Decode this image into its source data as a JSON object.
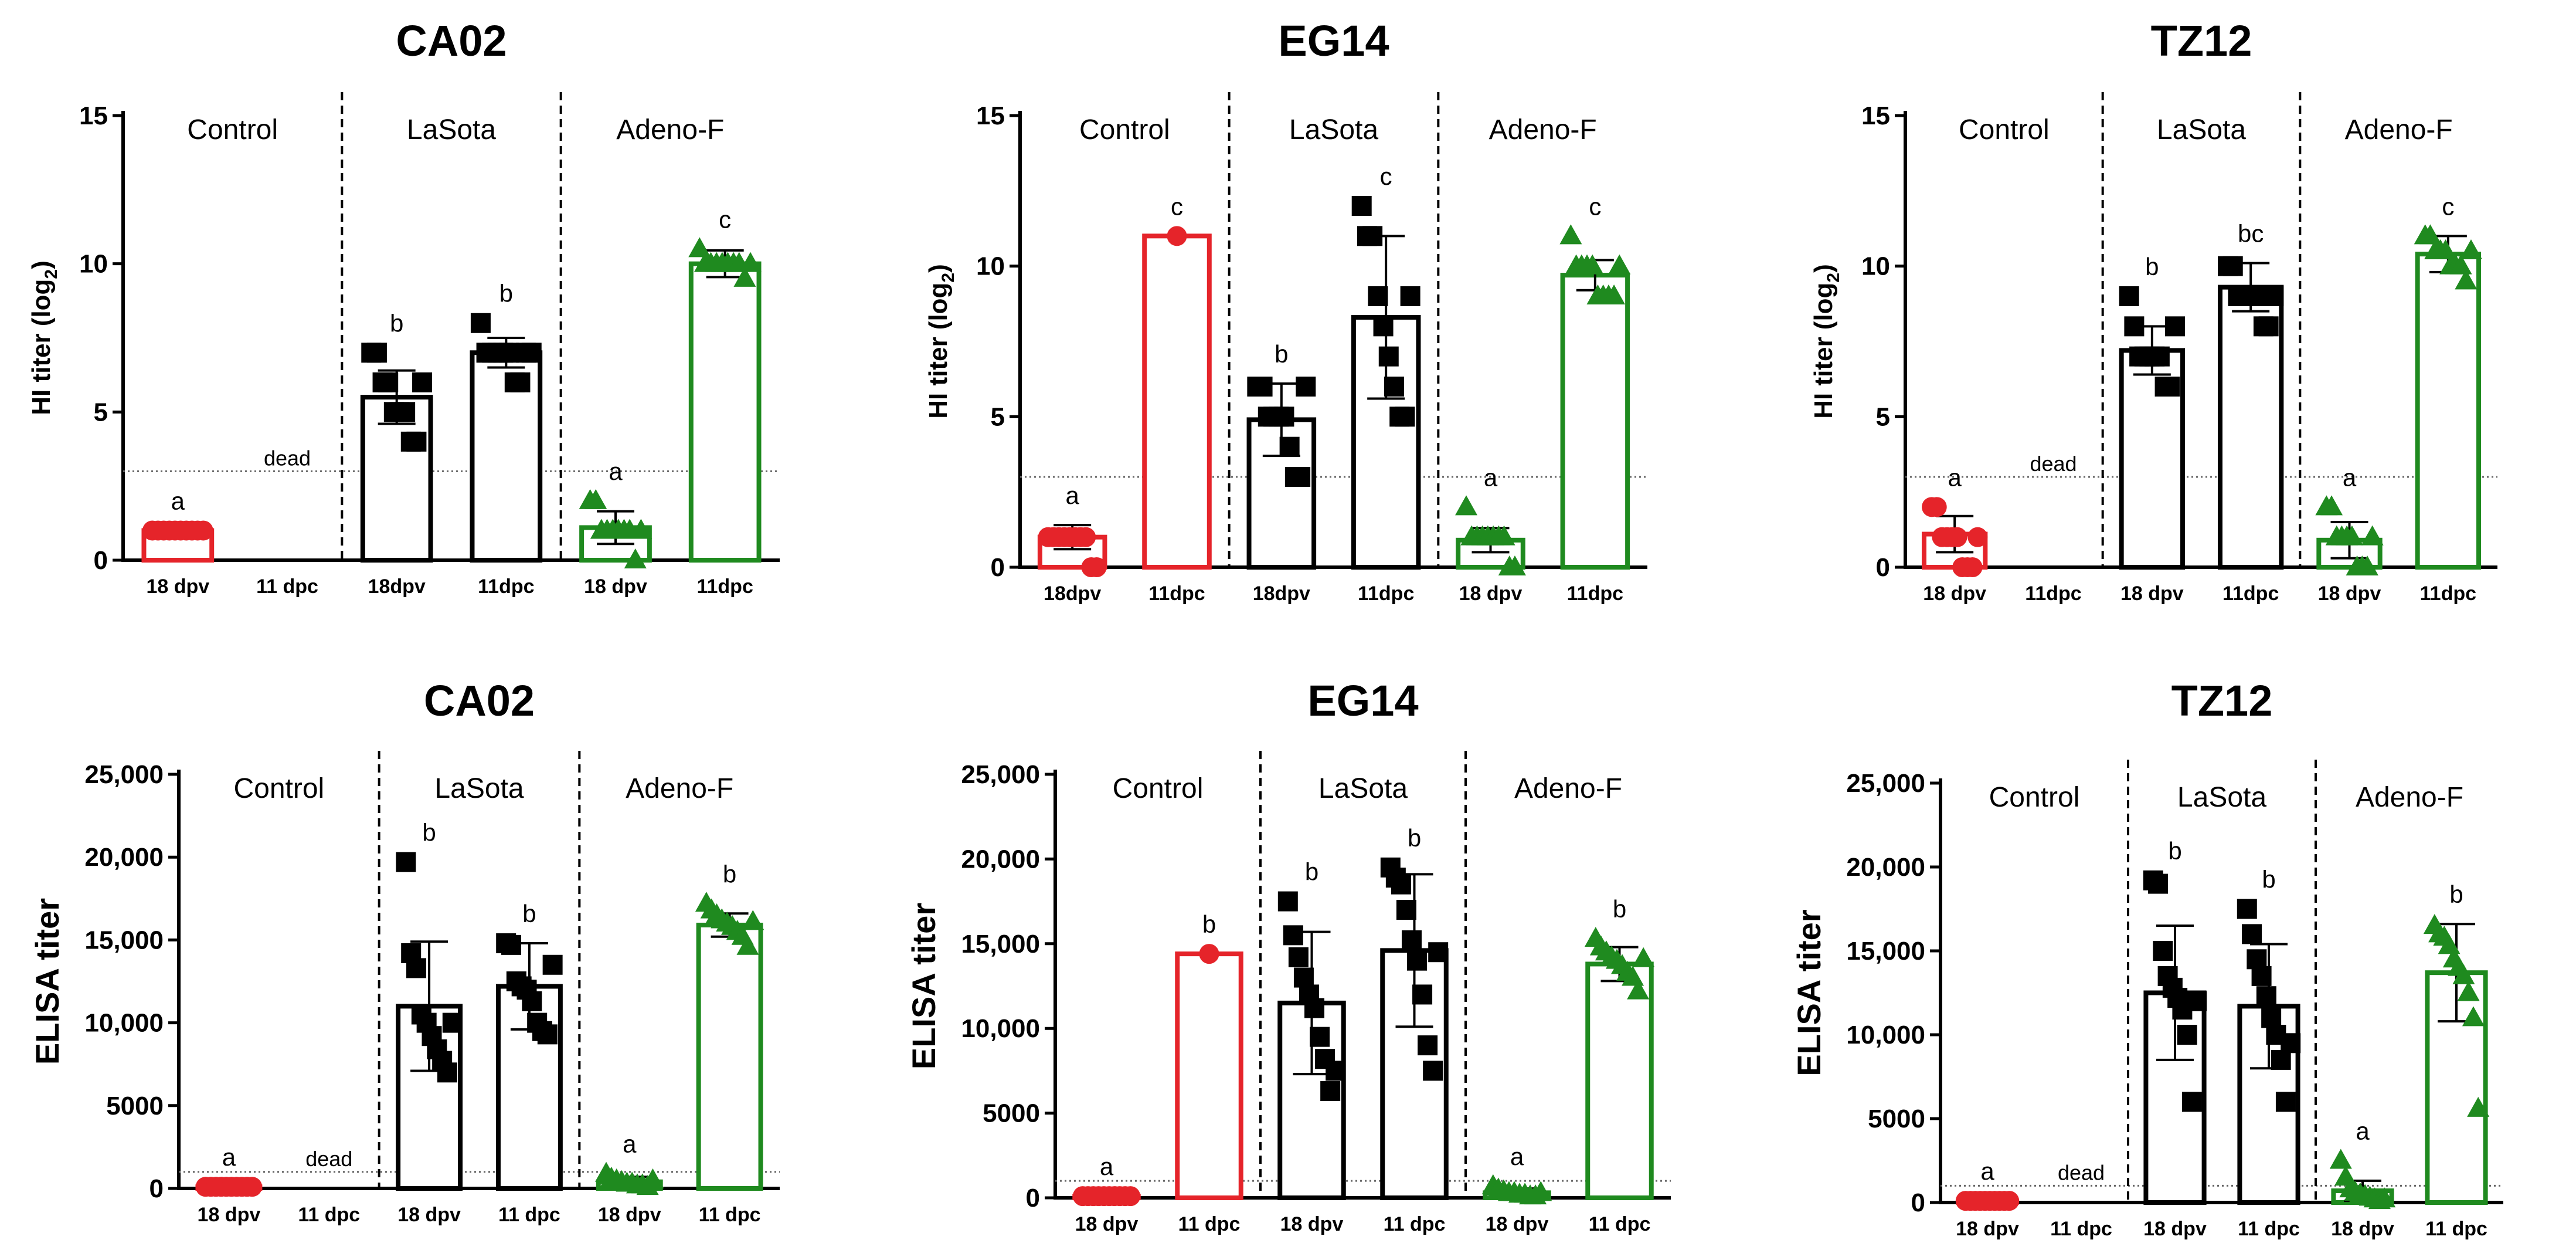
{
  "chart_data": [
    {
      "type": "bar",
      "title": "CA02",
      "ylabel": "HI titer (log",
      "ylabel_sub": "2",
      "ylabel_end": ")",
      "ylim": [
        0,
        15
      ],
      "yticks": [
        {
          "v": 0,
          "label": "0"
        },
        {
          "v": 5,
          "label": "5"
        },
        {
          "v": 10,
          "label": "10"
        },
        {
          "v": 15,
          "label": "15"
        }
      ],
      "threshold": 3,
      "groups": [
        {
          "name": "Control",
          "bars": [
            0,
            1
          ]
        },
        {
          "name": "LaSota",
          "bars": [
            2,
            3
          ]
        },
        {
          "name": "Adeno-F",
          "bars": [
            4,
            5
          ]
        }
      ],
      "bars": [
        {
          "label": "18 dpv",
          "mean": 1.0,
          "sd": 0,
          "color": "#e5242a",
          "marker": "circle",
          "letter": "a",
          "dead_text": "",
          "points": [
            1,
            1,
            1,
            1,
            1,
            1,
            1,
            1,
            1,
            1
          ]
        },
        {
          "label": "11 dpc",
          "mean": null,
          "sd": null,
          "color": "#e5242a",
          "marker": "circle",
          "letter": "",
          "dead_text": "dead",
          "points": []
        },
        {
          "label": "18dpv",
          "mean": 5.5,
          "sd": 0.9,
          "color": "#000000",
          "marker": "square",
          "letter": "b",
          "dead_text": "",
          "points": [
            7,
            7,
            6,
            6,
            5,
            5,
            5,
            4,
            4,
            6
          ]
        },
        {
          "label": "11dpc",
          "mean": 7.0,
          "sd": 0.5,
          "color": "#000000",
          "marker": "square",
          "letter": "b",
          "dead_text": "",
          "points": [
            8,
            7,
            7,
            7,
            7,
            7,
            6,
            6,
            7,
            7
          ]
        },
        {
          "label": "18 dpv",
          "mean": 1.1,
          "sd": 0.55,
          "color": "#1f8a1f",
          "marker": "triangle",
          "letter": "a",
          "dead_text": "",
          "points": [
            2,
            2,
            1,
            1,
            1,
            1,
            1,
            1,
            0,
            1
          ]
        },
        {
          "label": "11dpc",
          "mean": 10.0,
          "sd": 0.45,
          "color": "#1f8a1f",
          "marker": "triangle",
          "letter": "c",
          "dead_text": "",
          "points": [
            10.5,
            10,
            10,
            10,
            10,
            10,
            10,
            10,
            9.5,
            10
          ]
        }
      ]
    },
    {
      "type": "bar",
      "title": "EG14",
      "ylabel": "HI titer (log",
      "ylabel_sub": "2",
      "ylabel_end": ")",
      "ylim": [
        0,
        15
      ],
      "yticks": [
        {
          "v": 0,
          "label": "0"
        },
        {
          "v": 5,
          "label": "5"
        },
        {
          "v": 10,
          "label": "10"
        },
        {
          "v": 15,
          "label": "15"
        }
      ],
      "threshold": 3,
      "groups": [
        {
          "name": "Control",
          "bars": [
            0,
            1
          ]
        },
        {
          "name": "LaSota",
          "bars": [
            2,
            3
          ]
        },
        {
          "name": "Adeno-F",
          "bars": [
            4,
            5
          ]
        }
      ],
      "bars": [
        {
          "label": "18dpv",
          "mean": 1.0,
          "sd": 0.4,
          "color": "#e5242a",
          "marker": "circle",
          "letter": "a",
          "dead_text": "",
          "points": [
            1,
            1,
            1,
            1,
            1,
            1,
            1,
            1,
            0,
            0
          ]
        },
        {
          "label": "11dpc",
          "mean": 11.0,
          "sd": 0,
          "color": "#e5242a",
          "marker": "circle",
          "letter": "c",
          "dead_text": "",
          "points": [
            11
          ]
        },
        {
          "label": "18dpv",
          "mean": 4.9,
          "sd": 1.2,
          "color": "#000000",
          "marker": "square",
          "letter": "b",
          "dead_text": "",
          "points": [
            6,
            6,
            5,
            5,
            5,
            5,
            4,
            3,
            3,
            6
          ]
        },
        {
          "label": "11dpc",
          "mean": 8.3,
          "sd": 2.7,
          "color": "#000000",
          "marker": "square",
          "letter": "c",
          "dead_text": "",
          "points": [
            12,
            11,
            11,
            9,
            8,
            7,
            6,
            5,
            5,
            9
          ]
        },
        {
          "label": "18 dpv",
          "mean": 0.9,
          "sd": 0.4,
          "color": "#1f8a1f",
          "marker": "triangle",
          "letter": "a",
          "dead_text": "",
          "points": [
            2,
            1,
            1,
            1,
            1,
            1,
            1,
            1,
            0,
            0
          ]
        },
        {
          "label": "11dpc",
          "mean": 9.7,
          "sd": 0.5,
          "color": "#1f8a1f",
          "marker": "triangle",
          "letter": "c",
          "dead_text": "",
          "points": [
            11,
            10,
            10,
            10,
            10,
            9,
            9,
            9,
            9,
            10
          ]
        }
      ]
    },
    {
      "type": "bar",
      "title": "TZ12",
      "ylabel": "HI titer (log",
      "ylabel_sub": "2",
      "ylabel_end": ")",
      "ylim": [
        0,
        15
      ],
      "yticks": [
        {
          "v": 0,
          "label": "0"
        },
        {
          "v": 5,
          "label": "5"
        },
        {
          "v": 10,
          "label": "10"
        },
        {
          "v": 15,
          "label": "15"
        }
      ],
      "threshold": 3,
      "groups": [
        {
          "name": "Control",
          "bars": [
            0,
            1
          ]
        },
        {
          "name": "LaSota",
          "bars": [
            2,
            3
          ]
        },
        {
          "name": "Adeno-F",
          "bars": [
            4,
            5
          ]
        }
      ],
      "bars": [
        {
          "label": "18 dpv",
          "mean": 1.1,
          "sd": 0.6,
          "color": "#e5242a",
          "marker": "circle",
          "letter": "a",
          "dead_text": "",
          "points": [
            2,
            2,
            1,
            1,
            1,
            1,
            0,
            0,
            0,
            1
          ]
        },
        {
          "label": "11dpc",
          "mean": null,
          "sd": null,
          "color": "#e5242a",
          "marker": "circle",
          "letter": "",
          "dead_text": "dead",
          "points": []
        },
        {
          "label": "18 dpv",
          "mean": 7.2,
          "sd": 0.8,
          "color": "#000000",
          "marker": "square",
          "letter": "b",
          "dead_text": "",
          "points": [
            9,
            8,
            7,
            7,
            7,
            7,
            7,
            6,
            6,
            8
          ]
        },
        {
          "label": "11dpc",
          "mean": 9.3,
          "sd": 0.8,
          "color": "#000000",
          "marker": "square",
          "letter": "bc",
          "dead_text": "",
          "points": [
            10,
            10,
            9,
            9,
            9,
            9,
            9,
            8,
            8,
            9
          ]
        },
        {
          "label": "18 dpv",
          "mean": 0.9,
          "sd": 0.6,
          "color": "#1f8a1f",
          "marker": "triangle",
          "letter": "a",
          "dead_text": "",
          "points": [
            2,
            2,
            1,
            1,
            1,
            1,
            0,
            0,
            0,
            1
          ]
        },
        {
          "label": "11dpc",
          "mean": 10.4,
          "sd": 0.6,
          "color": "#1f8a1f",
          "marker": "triangle",
          "letter": "c",
          "dead_text": "",
          "points": [
            11,
            11,
            10.5,
            10.5,
            10.5,
            10,
            10,
            10,
            9.5,
            10.5
          ]
        }
      ]
    },
    {
      "type": "bar",
      "title": "CA02",
      "ylabel": "ELISA titer",
      "ylabel_sub": "",
      "ylabel_end": "",
      "ylim": [
        0,
        25000
      ],
      "yticks": [
        {
          "v": 0,
          "label": "0"
        },
        {
          "v": 5000,
          "label": "5000"
        },
        {
          "v": 10000,
          "label": "10,000"
        },
        {
          "v": 15000,
          "label": "15,000"
        },
        {
          "v": 20000,
          "label": "20,000"
        },
        {
          "v": 25000,
          "label": "25,000"
        }
      ],
      "threshold": 1000,
      "groups": [
        {
          "name": "Control",
          "bars": [
            0,
            1
          ]
        },
        {
          "name": "LaSota",
          "bars": [
            2,
            3
          ]
        },
        {
          "name": "Adeno-F",
          "bars": [
            4,
            5
          ]
        }
      ],
      "bars": [
        {
          "label": "18 dpv",
          "mean": 100,
          "sd": 0,
          "color": "#e5242a",
          "marker": "circle",
          "letter": "a",
          "dead_text": "",
          "points": [
            100,
            100,
            100,
            100,
            100,
            100,
            100,
            100,
            100,
            100
          ]
        },
        {
          "label": "11 dpc",
          "mean": null,
          "sd": null,
          "color": "#e5242a",
          "marker": "circle",
          "letter": "",
          "dead_text": "dead",
          "points": []
        },
        {
          "label": "18 dpv",
          "mean": 11000,
          "sd": 3900,
          "color": "#000000",
          "marker": "square",
          "letter": "b",
          "dead_text": "",
          "points": [
            19700,
            14200,
            13300,
            10500,
            10000,
            9200,
            8400,
            7700,
            7000,
            10000
          ]
        },
        {
          "label": "11 dpc",
          "mean": 12200,
          "sd": 2600,
          "color": "#000000",
          "marker": "square",
          "letter": "b",
          "dead_text": "",
          "points": [
            14800,
            14700,
            12500,
            12200,
            12000,
            11300,
            10000,
            9500,
            9300,
            13500
          ]
        },
        {
          "label": "18 dpv",
          "mean": 400,
          "sd": 300,
          "color": "#1f8a1f",
          "marker": "triangle",
          "letter": "a",
          "dead_text": "",
          "points": [
            900,
            600,
            500,
            400,
            300,
            300,
            200,
            200,
            100,
            500
          ]
        },
        {
          "label": "11 dpc",
          "mean": 15900,
          "sd": 700,
          "color": "#1f8a1f",
          "marker": "triangle",
          "letter": "b",
          "dead_text": "",
          "points": [
            17200,
            16800,
            16500,
            16200,
            16000,
            15800,
            15500,
            15200,
            14600,
            16100
          ]
        }
      ]
    },
    {
      "type": "bar",
      "title": "EG14",
      "ylabel": "ELISA titer",
      "ylabel_sub": "",
      "ylabel_end": "",
      "ylim": [
        0,
        25000
      ],
      "yticks": [
        {
          "v": 0,
          "label": "0"
        },
        {
          "v": 5000,
          "label": "5000"
        },
        {
          "v": 10000,
          "label": "10,000"
        },
        {
          "v": 15000,
          "label": "15,000"
        },
        {
          "v": 20000,
          "label": "20,000"
        },
        {
          "v": 25000,
          "label": "25,000"
        }
      ],
      "threshold": 1000,
      "groups": [
        {
          "name": "Control",
          "bars": [
            0,
            1
          ]
        },
        {
          "name": "LaSota",
          "bars": [
            2,
            3
          ]
        },
        {
          "name": "Adeno-F",
          "bars": [
            4,
            5
          ]
        }
      ],
      "bars": [
        {
          "label": "18 dpv",
          "mean": 100,
          "sd": 0,
          "color": "#e5242a",
          "marker": "circle",
          "letter": "a",
          "dead_text": "",
          "points": [
            100,
            100,
            100,
            100,
            100,
            100,
            100,
            100,
            100,
            100
          ]
        },
        {
          "label": "11 dpc",
          "mean": 14400,
          "sd": 0,
          "color": "#e5242a",
          "marker": "circle",
          "letter": "b",
          "dead_text": "",
          "points": [
            14400
          ]
        },
        {
          "label": "18 dpv",
          "mean": 11500,
          "sd": 4200,
          "color": "#000000",
          "marker": "square",
          "letter": "b",
          "dead_text": "",
          "points": [
            17500,
            15500,
            14200,
            13000,
            12000,
            11200,
            9500,
            8200,
            6300,
            7500
          ]
        },
        {
          "label": "11 dpc",
          "mean": 14600,
          "sd": 4500,
          "color": "#000000",
          "marker": "square",
          "letter": "b",
          "dead_text": "",
          "points": [
            19500,
            18900,
            18500,
            17000,
            15200,
            14000,
            12000,
            9000,
            7500,
            14500
          ]
        },
        {
          "label": "18 dpv",
          "mean": 300,
          "sd": 250,
          "color": "#1f8a1f",
          "marker": "triangle",
          "letter": "a",
          "dead_text": "",
          "points": [
            700,
            500,
            400,
            300,
            300,
            200,
            200,
            100,
            100,
            300
          ]
        },
        {
          "label": "11 dpc",
          "mean": 13800,
          "sd": 1000,
          "color": "#1f8a1f",
          "marker": "triangle",
          "letter": "b",
          "dead_text": "",
          "points": [
            15300,
            14800,
            14500,
            14200,
            14000,
            13700,
            13300,
            13000,
            12200,
            14100
          ]
        }
      ]
    },
    {
      "type": "bar",
      "title": "TZ12",
      "ylabel": "ELISA titer",
      "ylabel_sub": "",
      "ylabel_end": "",
      "ylim": [
        0,
        25000
      ],
      "yticks": [
        {
          "v": 0,
          "label": "0"
        },
        {
          "v": 5000,
          "label": "5000"
        },
        {
          "v": 10000,
          "label": "10,000"
        },
        {
          "v": 15000,
          "label": "15,000"
        },
        {
          "v": 20000,
          "label": "20,000"
        },
        {
          "v": 25000,
          "label": "25,000"
        }
      ],
      "threshold": 1000,
      "groups": [
        {
          "name": "Control",
          "bars": [
            0,
            1
          ]
        },
        {
          "name": "LaSota",
          "bars": [
            2,
            3
          ]
        },
        {
          "name": "Adeno-F",
          "bars": [
            4,
            5
          ]
        }
      ],
      "bars": [
        {
          "label": "18 dpv",
          "mean": 100,
          "sd": 0,
          "color": "#e5242a",
          "marker": "circle",
          "letter": "a",
          "dead_text": "",
          "points": [
            100,
            100,
            100,
            100,
            100,
            100,
            100,
            100,
            100,
            100
          ]
        },
        {
          "label": "11 dpc",
          "mean": null,
          "sd": null,
          "color": "#e5242a",
          "marker": "circle",
          "letter": "",
          "dead_text": "dead",
          "points": []
        },
        {
          "label": "18 dpv",
          "mean": 12500,
          "sd": 4000,
          "color": "#000000",
          "marker": "square",
          "letter": "b",
          "dead_text": "",
          "points": [
            19200,
            19000,
            15000,
            13500,
            12800,
            12200,
            11500,
            10000,
            6000,
            12000
          ]
        },
        {
          "label": "11 dpc",
          "mean": 11700,
          "sd": 3700,
          "color": "#000000",
          "marker": "square",
          "letter": "b",
          "dead_text": "",
          "points": [
            17500,
            16000,
            14500,
            13500,
            12300,
            11000,
            10000,
            8500,
            6000,
            9500
          ]
        },
        {
          "label": "18 dpv",
          "mean": 700,
          "sd": 600,
          "color": "#1f8a1f",
          "marker": "triangle",
          "letter": "a",
          "dead_text": "",
          "points": [
            2500,
            1500,
            800,
            600,
            500,
            400,
            300,
            200,
            100,
            200
          ]
        },
        {
          "label": "11 dpc",
          "mean": 13700,
          "sd": 2900,
          "color": "#1f8a1f",
          "marker": "triangle",
          "letter": "b",
          "dead_text": "",
          "points": [
            16500,
            16000,
            15800,
            15300,
            14500,
            14000,
            13500,
            12500,
            11000,
            5600
          ]
        }
      ]
    }
  ],
  "colors": {
    "control": "#e5242a",
    "lasota": "#000000",
    "adeno": "#1f8a1f",
    "threshold": "#666666"
  }
}
